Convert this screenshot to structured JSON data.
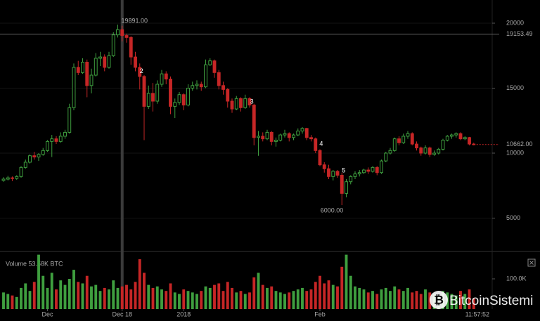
{
  "chart_data": {
    "type": "candlestick",
    "up_color": "#3f9f3f",
    "down_color": "#c62626",
    "xlim": [
      -0.8,
      111.2
    ],
    "xticks": [
      {
        "value": 10,
        "label": "Dec"
      },
      {
        "value": 27,
        "label": "Dec 18"
      },
      {
        "value": 41,
        "label": "2018"
      },
      {
        "value": 72,
        "label": "Feb"
      }
    ],
    "ylim": [
      2595,
      21784
    ],
    "yticks": [
      5000,
      10000,
      15000,
      20000
    ],
    "volume_ylim": [
      0,
      181400
    ],
    "volume_yticks": [
      {
        "value": 100000,
        "label": "100.0K"
      }
    ],
    "volume_label": "Volume 53.58K BTC",
    "clock": "11:57:52",
    "watermark": "BitcoinSistemi",
    "crosshair": {
      "index": 27,
      "value": 19153.49,
      "label": "19153.49"
    },
    "last_price": {
      "value": 10662,
      "label": "10662.00"
    },
    "annotations": [
      {
        "label": "19891.00",
        "index": 26,
        "value": 19891
      },
      {
        "label": "6000.00",
        "index": 77,
        "value": 6000
      },
      {
        "label": "2",
        "index": 31.4,
        "value": 16300
      },
      {
        "label": "3",
        "index": 56.5,
        "value": 13950
      },
      {
        "label": "4",
        "index": 72.3,
        "value": 10700
      },
      {
        "label": "5",
        "index": 77.4,
        "value": 8650
      }
    ],
    "candles": [
      [
        7900,
        8150,
        7800,
        8000
      ],
      [
        8000,
        8250,
        7900,
        8100
      ],
      [
        8100,
        8200,
        7850,
        8050
      ],
      [
        8050,
        8300,
        7950,
        8200
      ],
      [
        8200,
        9000,
        8100,
        8900
      ],
      [
        8900,
        9500,
        8800,
        9300
      ],
      [
        9300,
        9900,
        9200,
        9800
      ],
      [
        9800,
        10100,
        9500,
        9700
      ],
      [
        9700,
        10000,
        9400,
        9900
      ],
      [
        9900,
        10400,
        9800,
        10200
      ],
      [
        10200,
        11000,
        10100,
        10900
      ],
      [
        10900,
        11400,
        9700,
        11100
      ],
      [
        11100,
        11300,
        10700,
        10900
      ],
      [
        10900,
        11600,
        10800,
        11300
      ],
      [
        11300,
        11800,
        11100,
        11600
      ],
      [
        11600,
        13800,
        11500,
        13500
      ],
      [
        13500,
        16900,
        13300,
        16600
      ],
      [
        16600,
        17100,
        16000,
        16200
      ],
      [
        16200,
        17300,
        16100,
        17000
      ],
      [
        17000,
        17200,
        14300,
        15200
      ],
      [
        15200,
        16500,
        14600,
        16000
      ],
      [
        16000,
        17700,
        15900,
        17300
      ],
      [
        17300,
        17800,
        16700,
        17400
      ],
      [
        17400,
        17600,
        16300,
        16600
      ],
      [
        16600,
        17800,
        16500,
        17500
      ],
      [
        17500,
        19300,
        17400,
        19100
      ],
      [
        19100,
        19891,
        18900,
        19500
      ],
      [
        19500,
        19800,
        18600,
        19050
      ],
      [
        19050,
        19200,
        18500,
        18900
      ],
      [
        18900,
        19000,
        16800,
        17400
      ],
      [
        17400,
        17800,
        16300,
        16600
      ],
      [
        16600,
        16900,
        14900,
        15900
      ],
      [
        15900,
        16000,
        11000,
        13600
      ],
      [
        13600,
        15200,
        13400,
        14600
      ],
      [
        14600,
        15400,
        13200,
        14000
      ],
      [
        14000,
        15600,
        13800,
        15300
      ],
      [
        15300,
        16400,
        15100,
        16100
      ],
      [
        16100,
        16300,
        15300,
        15700
      ],
      [
        15700,
        15900,
        13000,
        13600
      ],
      [
        13600,
        14200,
        12700,
        13900
      ],
      [
        13900,
        14700,
        13700,
        14500
      ],
      [
        14500,
        14600,
        13300,
        13700
      ],
      [
        13700,
        15300,
        13600,
        15000
      ],
      [
        15000,
        15500,
        14800,
        15200
      ],
      [
        15200,
        15600,
        14900,
        15300
      ],
      [
        15300,
        15500,
        14800,
        15100
      ],
      [
        15100,
        17200,
        15000,
        16800
      ],
      [
        16800,
        17300,
        16700,
        17100
      ],
      [
        17100,
        17200,
        15800,
        16200
      ],
      [
        16200,
        16400,
        14900,
        15200
      ],
      [
        15200,
        15500,
        14500,
        14900
      ],
      [
        14900,
        15000,
        13500,
        14000
      ],
      [
        14000,
        14200,
        13100,
        13400
      ],
      [
        13400,
        14400,
        13300,
        14200
      ],
      [
        14200,
        14300,
        13200,
        13500
      ],
      [
        13500,
        14500,
        13400,
        14200
      ],
      [
        14200,
        14300,
        13500,
        13700
      ],
      [
        13700,
        13800,
        10600,
        11200
      ],
      [
        11200,
        11700,
        9800,
        11300
      ],
      [
        11300,
        11600,
        10900,
        11100
      ],
      [
        11100,
        11800,
        11000,
        11600
      ],
      [
        11600,
        11700,
        10600,
        10900
      ],
      [
        10900,
        11200,
        10500,
        11000
      ],
      [
        11000,
        11500,
        10900,
        11400
      ],
      [
        11400,
        11800,
        11200,
        11500
      ],
      [
        11500,
        11600,
        10900,
        11200
      ],
      [
        11200,
        11500,
        11000,
        11400
      ],
      [
        11400,
        11900,
        11300,
        11700
      ],
      [
        11700,
        12000,
        11500,
        11900
      ],
      [
        11900,
        11950,
        11000,
        11200
      ],
      [
        11200,
        11400,
        10900,
        11100
      ],
      [
        11100,
        11200,
        10000,
        10200
      ],
      [
        10200,
        10300,
        9000,
        9100
      ],
      [
        9100,
        9300,
        8500,
        8800
      ],
      [
        8800,
        9100,
        8000,
        8200
      ],
      [
        8200,
        8700,
        7900,
        8600
      ],
      [
        8600,
        8700,
        8100,
        8300
      ],
      [
        8300,
        8500,
        6000,
        6900
      ],
      [
        6900,
        8000,
        6600,
        7800
      ],
      [
        7800,
        8300,
        7600,
        8200
      ],
      [
        8200,
        8600,
        8000,
        8400
      ],
      [
        8400,
        8700,
        8200,
        8500
      ],
      [
        8500,
        8800,
        8400,
        8700
      ],
      [
        8700,
        8900,
        8400,
        8600
      ],
      [
        8600,
        9000,
        8500,
        8900
      ],
      [
        8900,
        9000,
        8300,
        8500
      ],
      [
        8500,
        9500,
        8400,
        9400
      ],
      [
        9400,
        10100,
        9300,
        10000
      ],
      [
        10000,
        10400,
        9900,
        10200
      ],
      [
        10200,
        11200,
        10100,
        11100
      ],
      [
        11100,
        11300,
        10600,
        10800
      ],
      [
        10800,
        11500,
        10700,
        11300
      ],
      [
        11300,
        11700,
        11100,
        11500
      ],
      [
        11500,
        11600,
        10600,
        10700
      ],
      [
        10700,
        10900,
        10200,
        10400
      ],
      [
        10400,
        10500,
        9800,
        10000
      ],
      [
        10000,
        10600,
        9900,
        10400
      ],
      [
        10400,
        10500,
        9700,
        9900
      ],
      [
        9900,
        10200,
        9800,
        10000
      ],
      [
        10000,
        10400,
        9900,
        10300
      ],
      [
        10300,
        11100,
        10200,
        11000
      ],
      [
        11000,
        11400,
        10900,
        11300
      ],
      [
        11300,
        11500,
        11100,
        11400
      ],
      [
        11400,
        11600,
        11200,
        11500
      ],
      [
        11500,
        11600,
        11000,
        11100
      ],
      [
        11100,
        11300,
        11000,
        11200
      ],
      [
        11200,
        11250,
        10600,
        10700
      ],
      [
        10700,
        10800,
        10600,
        10662
      ]
    ],
    "volumes": [
      55000,
      50000,
      45000,
      40000,
      70000,
      85000,
      60000,
      90000,
      180000,
      110000,
      70000,
      120000,
      65000,
      95000,
      80000,
      100000,
      130000,
      90000,
      85000,
      110000,
      75000,
      80000,
      60000,
      70000,
      65000,
      95000,
      70000,
      75000,
      80000,
      65000,
      90000,
      165000,
      120000,
      80000,
      70000,
      75000,
      65000,
      60000,
      85000,
      55000,
      50000,
      65000,
      60000,
      55000,
      50000,
      60000,
      75000,
      70000,
      80000,
      85000,
      60000,
      90000,
      70000,
      55000,
      60000,
      50000,
      55000,
      105000,
      120000,
      80000,
      70000,
      75000,
      60000,
      55000,
      50000,
      55000,
      60000,
      65000,
      70000,
      60000,
      65000,
      90000,
      110000,
      85000,
      95000,
      80000,
      75000,
      140000,
      180000,
      110000,
      75000,
      70000,
      65000,
      55000,
      60000,
      50000,
      65000,
      70000,
      60000,
      75000,
      65000,
      60000,
      70000,
      55000,
      60000,
      50000,
      65000,
      55000,
      50000,
      45000,
      60000,
      55000,
      50000,
      45000,
      60000,
      50000,
      65000,
      35000
    ]
  }
}
